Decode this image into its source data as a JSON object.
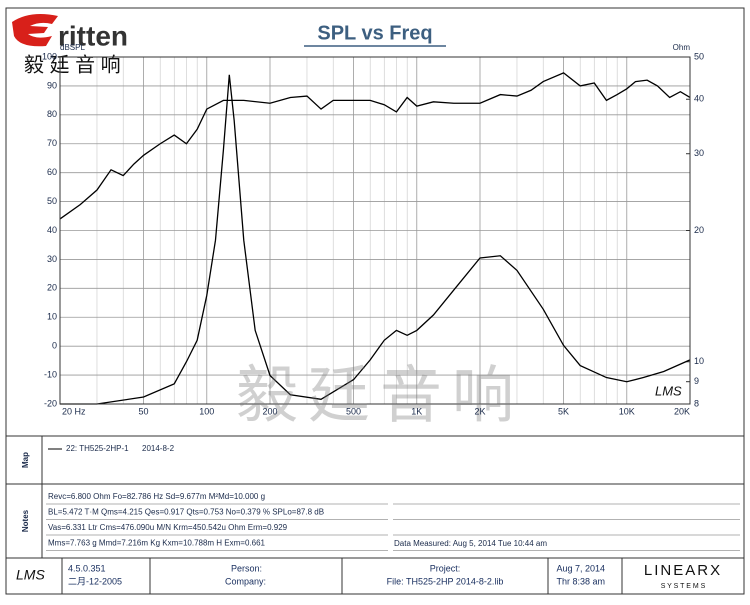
{
  "header": {
    "logo": "ritten",
    "logo_cn": "毅 廷 音 响",
    "watermark": "毅廷音响"
  },
  "chart_data": {
    "type": "line",
    "title": "SPL vs Freq",
    "y_label": "dBSPL",
    "y2_label": "Ohm",
    "brand": "LMS",
    "x_log": true,
    "y2_log": true,
    "grid": true,
    "xlim": [
      20,
      20000
    ],
    "xticks": [
      {
        "value": 20,
        "label": "20  Hz"
      },
      50,
      100,
      200,
      500,
      {
        "value": 1000,
        "label": "1K"
      },
      {
        "value": 2000,
        "label": "2K"
      },
      {
        "value": 5000,
        "label": "5K"
      },
      {
        "value": 10000,
        "label": "10K"
      },
      {
        "value": 20000,
        "label": "20K"
      }
    ],
    "xgrid": [
      30,
      40,
      60,
      70,
      80,
      90,
      300,
      400,
      600,
      700,
      800,
      900,
      3000,
      4000,
      6000,
      7000,
      8000,
      9000
    ],
    "ylim": [
      -20,
      100
    ],
    "yticks": [
      -20,
      -10,
      0,
      10,
      20,
      30,
      40,
      50,
      60,
      70,
      80,
      90,
      100
    ],
    "y2lim": [
      8,
      50
    ],
    "y2ticks": [
      8,
      9,
      10,
      20,
      30,
      40,
      50
    ],
    "series": [
      {
        "color": "#000000",
        "x": [
          20,
          25,
          30,
          35,
          40,
          45,
          50,
          60,
          70,
          80,
          90,
          100,
          120,
          150,
          200,
          250,
          300,
          350,
          400,
          500,
          600,
          700,
          800,
          900,
          1000,
          1200,
          1500,
          1800,
          2000,
          2500,
          3000,
          3500,
          4000,
          5000,
          6000,
          7000,
          8000,
          9000,
          10000,
          11000,
          12500,
          14000,
          16000,
          18000,
          20000
        ],
        "values": [
          44,
          49,
          54,
          61,
          59,
          63,
          66,
          70,
          73,
          70,
          75,
          82,
          85,
          85,
          84,
          86,
          86.5,
          82,
          85,
          85,
          85,
          83.5,
          81,
          86,
          83,
          84.5,
          84,
          84,
          84,
          87,
          86.5,
          88.5,
          91.5,
          94.5,
          90,
          91,
          85,
          87,
          89,
          91.5,
          92,
          90,
          86,
          88,
          86
        ]
      },
      {
        "color": "#000000",
        "axis": "y2",
        "x": [
          20,
          30,
          50,
          70,
          80,
          90,
          100,
          110,
          120,
          128,
          135,
          150,
          170,
          200,
          250,
          350,
          500,
          600,
          700,
          800,
          900,
          1000,
          1200,
          1500,
          2000,
          2500,
          3000,
          4000,
          5000,
          6000,
          8000,
          10000,
          12000,
          15000,
          20000
        ],
        "values": [
          8,
          8,
          8.3,
          8.9,
          10,
          11.2,
          14.2,
          19,
          30.6,
          45.5,
          35.8,
          19,
          11.8,
          9.3,
          8.4,
          8.2,
          9.1,
          10.1,
          11.2,
          11.8,
          11.5,
          11.8,
          12.8,
          14.6,
          17.3,
          17.5,
          16.2,
          13.2,
          10.9,
          9.8,
          9.2,
          9,
          9.2,
          9.5,
          10.1
        ]
      }
    ]
  },
  "map": {
    "label": "Map",
    "entry": "22: TH525-2HP-1",
    "date": "2014-8-2"
  },
  "notes": {
    "label": "Notes",
    "rows": [
      "Revc=6.800 Ohm  Fo=82.786 Hz  Sd=9.677m M²Md=10.000 g",
      "BL=5.472 T·M  Qms=4.215  Qes=0.917  Qts=0.753  No=0.379 %  SPLo=87.8 dB",
      "Vas=6.331 Ltr  Cms=476.090u M/N  Krm=450.542u Ohm  Erm=0.929",
      "Mms=7.763 g  Mmd=7.216m Kg  Kxm=10.788m H  Exm=0.661"
    ],
    "measured": "Data Measured: Aug  5, 2014  Tue 10:44 am"
  },
  "footer": {
    "brand": "LMS",
    "version": "4.5.0.351",
    "build": "二月-12-2005",
    "person": "Person:",
    "company": "Company:",
    "project": "Project:",
    "file": "File: TH525-2HP   2014-8-2.lib",
    "date": "Aug  7, 2014",
    "time": "Thr  8:38 am",
    "maker": "LINEARX",
    "maker_sub": "S Y S T E M S"
  }
}
